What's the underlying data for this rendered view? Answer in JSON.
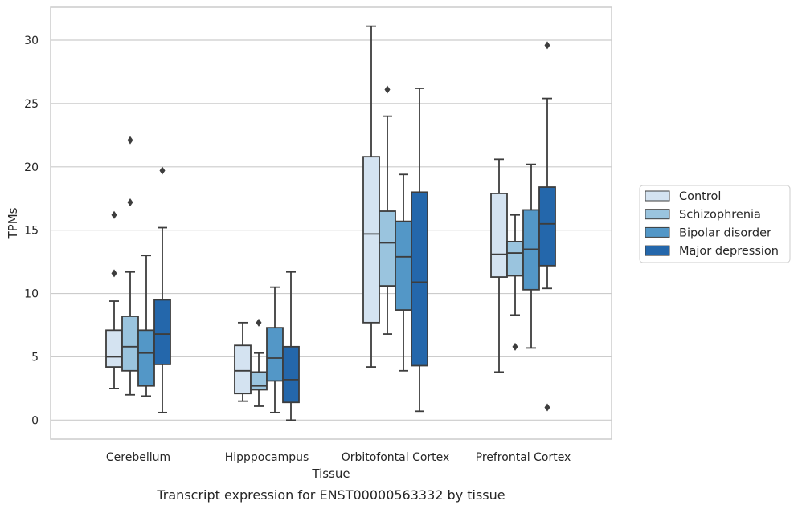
{
  "chart_data": {
    "type": "box",
    "xlabel": "Tissue",
    "ylabel": "TPMs",
    "caption": "Transcript expression for ENST00000563332 by tissue",
    "categories": [
      "Cerebellum",
      "Hipppocampus",
      "Orbitofontal Cortex",
      "Prefrontal Cortex"
    ],
    "ylim": [
      -1.5,
      32.6
    ],
    "yticks": [
      0,
      5,
      10,
      15,
      20,
      25,
      30
    ],
    "grid": "horizontal",
    "legend_position": "right",
    "series": [
      {
        "name": "Control",
        "color": "#d4e3f1",
        "boxes": [
          {
            "whislo": 2.5,
            "q1": 4.2,
            "med": 5.0,
            "q3": 7.1,
            "whishi": 9.4,
            "fliers": [
              11.6,
              16.2
            ]
          },
          {
            "whislo": 1.5,
            "q1": 2.1,
            "med": 3.9,
            "q3": 5.9,
            "whishi": 7.7,
            "fliers": []
          },
          {
            "whislo": 4.2,
            "q1": 7.7,
            "med": 14.7,
            "q3": 20.8,
            "whishi": 31.1,
            "fliers": []
          },
          {
            "whislo": 3.8,
            "q1": 11.3,
            "med": 13.1,
            "q3": 17.9,
            "whishi": 20.6,
            "fliers": []
          }
        ]
      },
      {
        "name": "Schizophrenia",
        "color": "#9ac4de",
        "boxes": [
          {
            "whislo": 2.0,
            "q1": 3.9,
            "med": 5.8,
            "q3": 8.2,
            "whishi": 11.7,
            "fliers": [
              17.2,
              22.1
            ]
          },
          {
            "whislo": 1.1,
            "q1": 2.4,
            "med": 2.7,
            "q3": 3.8,
            "whishi": 5.3,
            "fliers": [
              7.7
            ]
          },
          {
            "whislo": 6.8,
            "q1": 10.6,
            "med": 14.0,
            "q3": 16.5,
            "whishi": 24.0,
            "fliers": [
              26.1
            ]
          },
          {
            "whislo": 8.3,
            "q1": 11.4,
            "med": 13.2,
            "q3": 14.1,
            "whishi": 16.2,
            "fliers": [
              5.8
            ]
          }
        ]
      },
      {
        "name": "Bipolar disorder",
        "color": "#5397c7",
        "boxes": [
          {
            "whislo": 1.9,
            "q1": 2.7,
            "med": 5.3,
            "q3": 7.1,
            "whishi": 13.0,
            "fliers": []
          },
          {
            "whislo": 0.6,
            "q1": 3.1,
            "med": 4.9,
            "q3": 7.3,
            "whishi": 10.5,
            "fliers": []
          },
          {
            "whislo": 3.9,
            "q1": 8.7,
            "med": 12.9,
            "q3": 15.7,
            "whishi": 19.4,
            "fliers": []
          },
          {
            "whislo": 5.7,
            "q1": 10.3,
            "med": 13.5,
            "q3": 16.6,
            "whishi": 20.2,
            "fliers": []
          }
        ]
      },
      {
        "name": "Major depression",
        "color": "#2467ab",
        "boxes": [
          {
            "whislo": 0.6,
            "q1": 4.4,
            "med": 6.8,
            "q3": 9.5,
            "whishi": 15.2,
            "fliers": [
              19.7
            ]
          },
          {
            "whislo": 0.0,
            "q1": 1.4,
            "med": 3.2,
            "q3": 5.8,
            "whishi": 11.7,
            "fliers": []
          },
          {
            "whislo": 0.7,
            "q1": 4.3,
            "med": 10.9,
            "q3": 18.0,
            "whishi": 26.2,
            "fliers": []
          },
          {
            "whislo": 10.4,
            "q1": 12.2,
            "med": 15.5,
            "q3": 18.4,
            "whishi": 25.4,
            "fliers": [
              1.0,
              29.6
            ]
          }
        ]
      }
    ]
  }
}
